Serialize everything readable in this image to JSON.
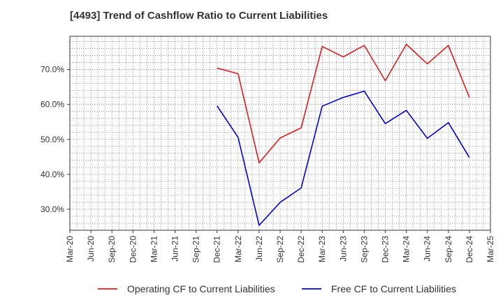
{
  "chart_data": {
    "type": "line",
    "title": "[4493]  Trend of Cashflow Ratio to Current Liabilities",
    "xlabel": "",
    "ylabel": "",
    "x_ticks": [
      "Mar-20",
      "Jun-20",
      "Sep-20",
      "Dec-20",
      "Mar-21",
      "Jun-21",
      "Sep-21",
      "Dec-21",
      "Mar-22",
      "Jun-22",
      "Sep-22",
      "Dec-22",
      "Mar-23",
      "Jun-23",
      "Sep-23",
      "Dec-23",
      "Mar-24",
      "Jun-24",
      "Sep-24",
      "Dec-24",
      "Mar-25"
    ],
    "y_ticks": [
      "30.0%",
      "40.0%",
      "50.0%",
      "60.0%",
      "70.0%"
    ],
    "y_tick_values": [
      30,
      40,
      50,
      60,
      70
    ],
    "ylim": [
      24,
      79.5
    ],
    "grid": true,
    "legend_position": "bottom",
    "series": [
      {
        "name": "Operating CF to Current Liabilities",
        "color": "#e31a1c",
        "x": [
          "Dec-21",
          "Mar-22",
          "Jun-22",
          "Sep-22",
          "Dec-22",
          "Mar-23",
          "Jun-23",
          "Sep-23",
          "Dec-23",
          "Mar-24",
          "Jun-24",
          "Sep-24",
          "Dec-24"
        ],
        "values": [
          70.4,
          68.8,
          43.3,
          50.4,
          53.3,
          76.6,
          73.6,
          76.9,
          66.8,
          77.2,
          71.6,
          76.9,
          62.0
        ]
      },
      {
        "name": "Free CF to Current Liabilities",
        "color": "#0000e0",
        "x": [
          "Dec-21",
          "Mar-22",
          "Jun-22",
          "Sep-22",
          "Dec-22",
          "Mar-23",
          "Jun-23",
          "Sep-23",
          "Dec-23",
          "Mar-24",
          "Jun-24",
          "Sep-24",
          "Dec-24"
        ],
        "values": [
          59.6,
          50.6,
          25.4,
          32.0,
          36.1,
          59.5,
          62.0,
          63.8,
          54.5,
          58.3,
          50.3,
          54.8,
          44.8
        ]
      }
    ]
  }
}
